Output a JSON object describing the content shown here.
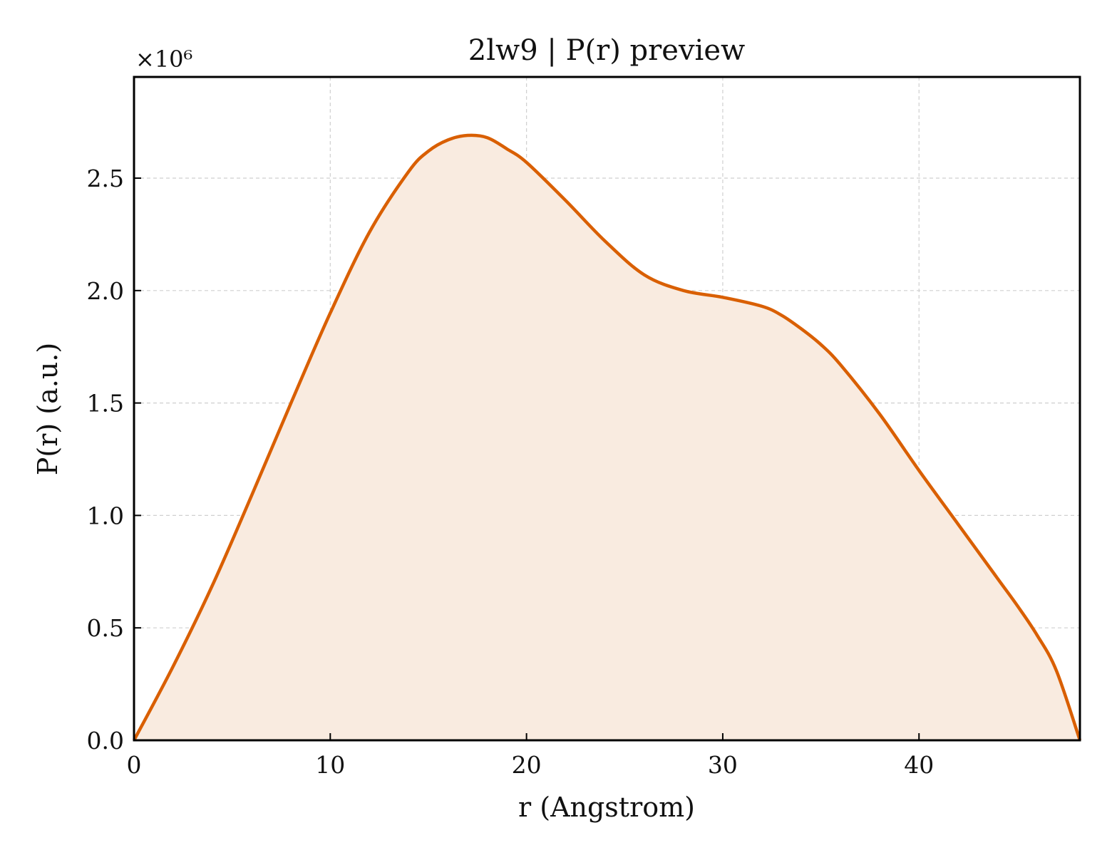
{
  "chart_data": {
    "type": "area",
    "title": "2lw9 | P(r) preview",
    "xlabel": "r (Angstrom)",
    "ylabel": "P(r) (a.u.)",
    "y_multiplier_label": "×10⁶",
    "xlim": [
      0,
      48.2
    ],
    "ylim": [
      0,
      2.95
    ],
    "x_ticks": [
      0,
      10,
      20,
      30,
      40
    ],
    "x_tick_labels": [
      "0",
      "10",
      "20",
      "30",
      "40"
    ],
    "y_ticks": [
      0,
      0.5,
      1.0,
      1.5,
      2.0,
      2.5
    ],
    "y_tick_labels": [
      "0.0",
      "0.5",
      "1.0",
      "1.5",
      "2.0",
      "2.5"
    ],
    "grid": true,
    "colors": {
      "line": "#d95f02",
      "fill": "#f9ebe0"
    },
    "series": [
      {
        "x": [
          0,
          2,
          4,
          6,
          8,
          10,
          12,
          14,
          15,
          16,
          17,
          18,
          19,
          20,
          22,
          24,
          26,
          28,
          30,
          32,
          33,
          34,
          35,
          36,
          38,
          40,
          42,
          44,
          45,
          46,
          47,
          48.2
        ],
        "y": [
          0,
          0.33,
          0.69,
          1.09,
          1.5,
          1.9,
          2.26,
          2.53,
          2.62,
          2.67,
          2.69,
          2.68,
          2.63,
          2.57,
          2.4,
          2.22,
          2.07,
          2.0,
          1.97,
          1.93,
          1.89,
          1.83,
          1.76,
          1.67,
          1.45,
          1.2,
          0.96,
          0.72,
          0.6,
          0.47,
          0.31,
          0.0
        ]
      }
    ]
  }
}
